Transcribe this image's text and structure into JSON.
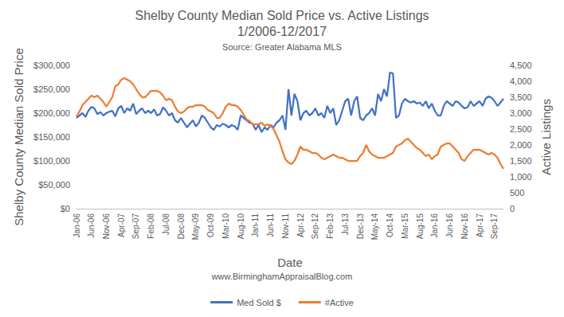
{
  "chart_data": {
    "type": "line",
    "title": "Shelby County Median Sold Price vs. Active Listings",
    "subtitle": "1/2006-12/2017",
    "annotations": [
      "Source: Greater Alabama MLS",
      "www.BirminghamAppraisalBlog.com"
    ],
    "xlabel": "Date",
    "ylabel": "Shelby County Median Sold Price",
    "y2label": "Active Listings",
    "categories": [
      "Jan-06",
      null,
      null,
      null,
      null,
      "Jun-06",
      null,
      null,
      null,
      null,
      "Nov-06",
      null,
      null,
      null,
      null,
      "Apr-07",
      null,
      null,
      null,
      null,
      "Sep-07",
      null,
      null,
      null,
      null,
      "Feb-08",
      null,
      null,
      null,
      null,
      "Jul-08",
      null,
      null,
      null,
      null,
      "Dec-08",
      null,
      null,
      null,
      null,
      "May-09",
      null,
      null,
      null,
      null,
      "Oct-09",
      null,
      null,
      null,
      null,
      "Mar-10",
      null,
      null,
      null,
      null,
      "Aug-10",
      null,
      null,
      null,
      null,
      "Jan-11",
      null,
      null,
      null,
      null,
      "Jun-11",
      null,
      null,
      null,
      null,
      "Nov-11",
      null,
      null,
      null,
      null,
      "Apr-12",
      null,
      null,
      null,
      null,
      "Sep-12",
      null,
      null,
      null,
      null,
      "Feb-13",
      null,
      null,
      null,
      null,
      "Jul-13",
      null,
      null,
      null,
      null,
      "Dec-13",
      null,
      null,
      null,
      null,
      "May-14",
      null,
      null,
      null,
      null,
      "Oct-14",
      null,
      null,
      null,
      null,
      "Mar-15",
      null,
      null,
      null,
      null,
      "Aug-15",
      null,
      null,
      null,
      null,
      "Jan-16",
      null,
      null,
      null,
      null,
      "Jun-16",
      null,
      null,
      null,
      null,
      "Nov-16",
      null,
      null,
      null,
      null,
      "Apr-17",
      null,
      null,
      null,
      null,
      "Sep-17",
      null,
      null,
      null
    ],
    "series": [
      {
        "name": "Med Sold $",
        "color": "#4472c4",
        "line_style": "solid",
        "values": [
          190000,
          195000,
          200000,
          192000,
          205000,
          213000,
          210000,
          198000,
          202000,
          195000,
          200000,
          203000,
          205000,
          193000,
          210000,
          215000,
          200000,
          210000,
          205000,
          220000,
          198000,
          205000,
          210000,
          200000,
          205000,
          200000,
          208000,
          195000,
          198000,
          212000,
          205000,
          195000,
          200000,
          185000,
          180000,
          190000,
          180000,
          170000,
          178000,
          185000,
          172000,
          180000,
          195000,
          190000,
          180000,
          170000,
          165000,
          175000,
          172000,
          178000,
          175000,
          170000,
          175000,
          172000,
          165000,
          195000,
          190000,
          185000,
          180000,
          178000,
          165000,
          175000,
          160000,
          170000,
          165000,
          175000,
          170000,
          180000,
          185000,
          195000,
          165000,
          250000,
          195000,
          240000,
          225000,
          185000,
          200000,
          205000,
          195000,
          200000,
          210000,
          195000,
          200000,
          190000,
          215000,
          200000,
          210000,
          175000,
          185000,
          205000,
          225000,
          230000,
          195000,
          225000,
          235000,
          190000,
          185000,
          195000,
          200000,
          210000,
          195000,
          240000,
          225000,
          250000,
          235000,
          285000,
          283000,
          190000,
          195000,
          220000,
          230000,
          225000,
          222000,
          225000,
          220000,
          222000,
          215000,
          225000,
          210000,
          220000,
          205000,
          195000,
          195000,
          215000,
          225000,
          220000,
          215000,
          225000,
          222000,
          215000,
          210000,
          212000,
          225000,
          215000,
          220000,
          225000,
          215000,
          230000,
          235000,
          232000,
          225000,
          215000,
          222000,
          230000
        ]
      },
      {
        "name": "#Active",
        "color": "#ed7d31",
        "line_style": "solid",
        "axis": "y2",
        "values": [
          2900,
          3050,
          3250,
          3350,
          3450,
          3550,
          3500,
          3550,
          3450,
          3350,
          3200,
          3350,
          3500,
          3850,
          3900,
          4050,
          4100,
          4050,
          4000,
          3900,
          3750,
          3600,
          3500,
          3500,
          3600,
          3700,
          3700,
          3700,
          3650,
          3550,
          3400,
          3450,
          3400,
          3200,
          3050,
          3000,
          3050,
          3150,
          3200,
          3200,
          3250,
          3250,
          3250,
          3200,
          3100,
          3050,
          3000,
          2850,
          2850,
          3000,
          3200,
          3300,
          3250,
          3250,
          3200,
          3100,
          2950,
          2800,
          2750,
          2650,
          2650,
          2650,
          2700,
          2600,
          2650,
          2600,
          2500,
          2300,
          2100,
          1800,
          1550,
          1450,
          1400,
          1500,
          1700,
          1950,
          1850,
          1850,
          1800,
          1750,
          1750,
          1700,
          1600,
          1550,
          1600,
          1650,
          1700,
          1650,
          1600,
          1600,
          1550,
          1500,
          1500,
          1500,
          1500,
          1650,
          1750,
          2000,
          1800,
          1700,
          1650,
          1600,
          1600,
          1600,
          1650,
          1700,
          1750,
          1950,
          2000,
          2050,
          2150,
          2200,
          2100,
          2000,
          1900,
          1850,
          1750,
          1650,
          1700,
          1550,
          1650,
          1700,
          1950,
          2000,
          2050,
          2050,
          1950,
          1850,
          1750,
          1550,
          1500,
          1650,
          1750,
          1850,
          1850,
          1850,
          1800,
          1750,
          1700,
          1750,
          1700,
          1600,
          1400,
          1250
        ]
      }
    ],
    "ylim": [
      0,
      300000
    ],
    "yticks": [
      {
        "value": 0,
        "label": "$0"
      },
      {
        "value": 50000,
        "label": "$50,000"
      },
      {
        "value": 100000,
        "label": "$100,000"
      },
      {
        "value": 150000,
        "label": "$150,000"
      },
      {
        "value": 200000,
        "label": "$200,000"
      },
      {
        "value": 250000,
        "label": "$250,000"
      },
      {
        "value": 300000,
        "label": "$300,000"
      }
    ],
    "y2lim": [
      0,
      4500
    ],
    "y2ticks": [
      0,
      500,
      {
        "value": 1000,
        "label": "1,000"
      },
      {
        "value": 1500,
        "label": "1,500"
      },
      {
        "value": 2000,
        "label": "2,000"
      },
      {
        "value": 2500,
        "label": "2,500"
      },
      {
        "value": 3000,
        "label": "3,000"
      },
      {
        "value": 3500,
        "label": "3,500"
      },
      {
        "value": 4000,
        "label": "4,000"
      },
      {
        "value": 4500,
        "label": "4,500"
      }
    ],
    "grid": false,
    "legend": "bottom"
  }
}
